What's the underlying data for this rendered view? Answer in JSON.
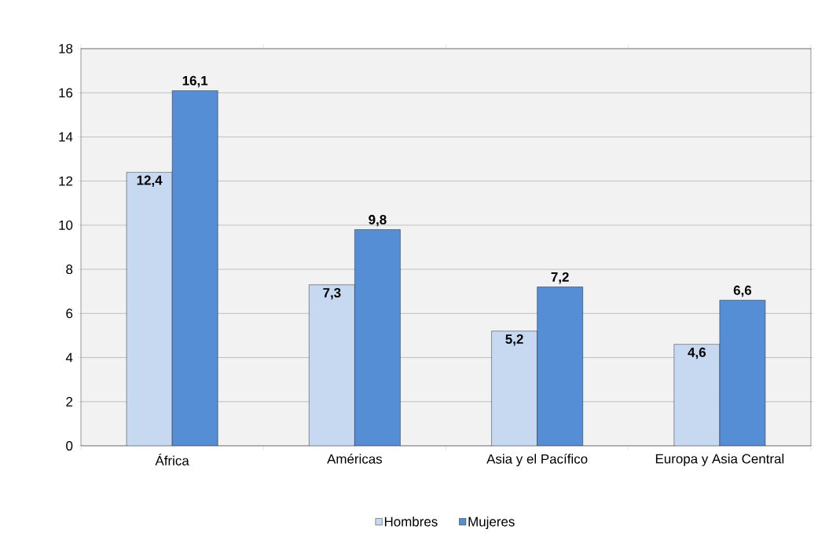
{
  "chart_data": {
    "type": "bar",
    "categories": [
      "África",
      "Américas",
      "Asia y el Pacífico",
      "Europa y Asia Central"
    ],
    "series": [
      {
        "name": "Hombres",
        "color": "#c6d9f1",
        "values": [
          12.4,
          7.3,
          5.2,
          4.6
        ],
        "value_labels": [
          "12,4",
          "7,3",
          "5,2",
          "4,6"
        ]
      },
      {
        "name": "Mujeres",
        "color": "#558ed5",
        "values": [
          16.1,
          9.8,
          7.2,
          6.6
        ],
        "value_labels": [
          "16,1",
          "9,8",
          "7,2",
          "6,6"
        ]
      }
    ],
    "ylim": [
      0,
      18
    ],
    "yticks": [
      0,
      2,
      4,
      6,
      8,
      10,
      12,
      14,
      16,
      18
    ],
    "grid": "y",
    "legend": "bottom"
  }
}
